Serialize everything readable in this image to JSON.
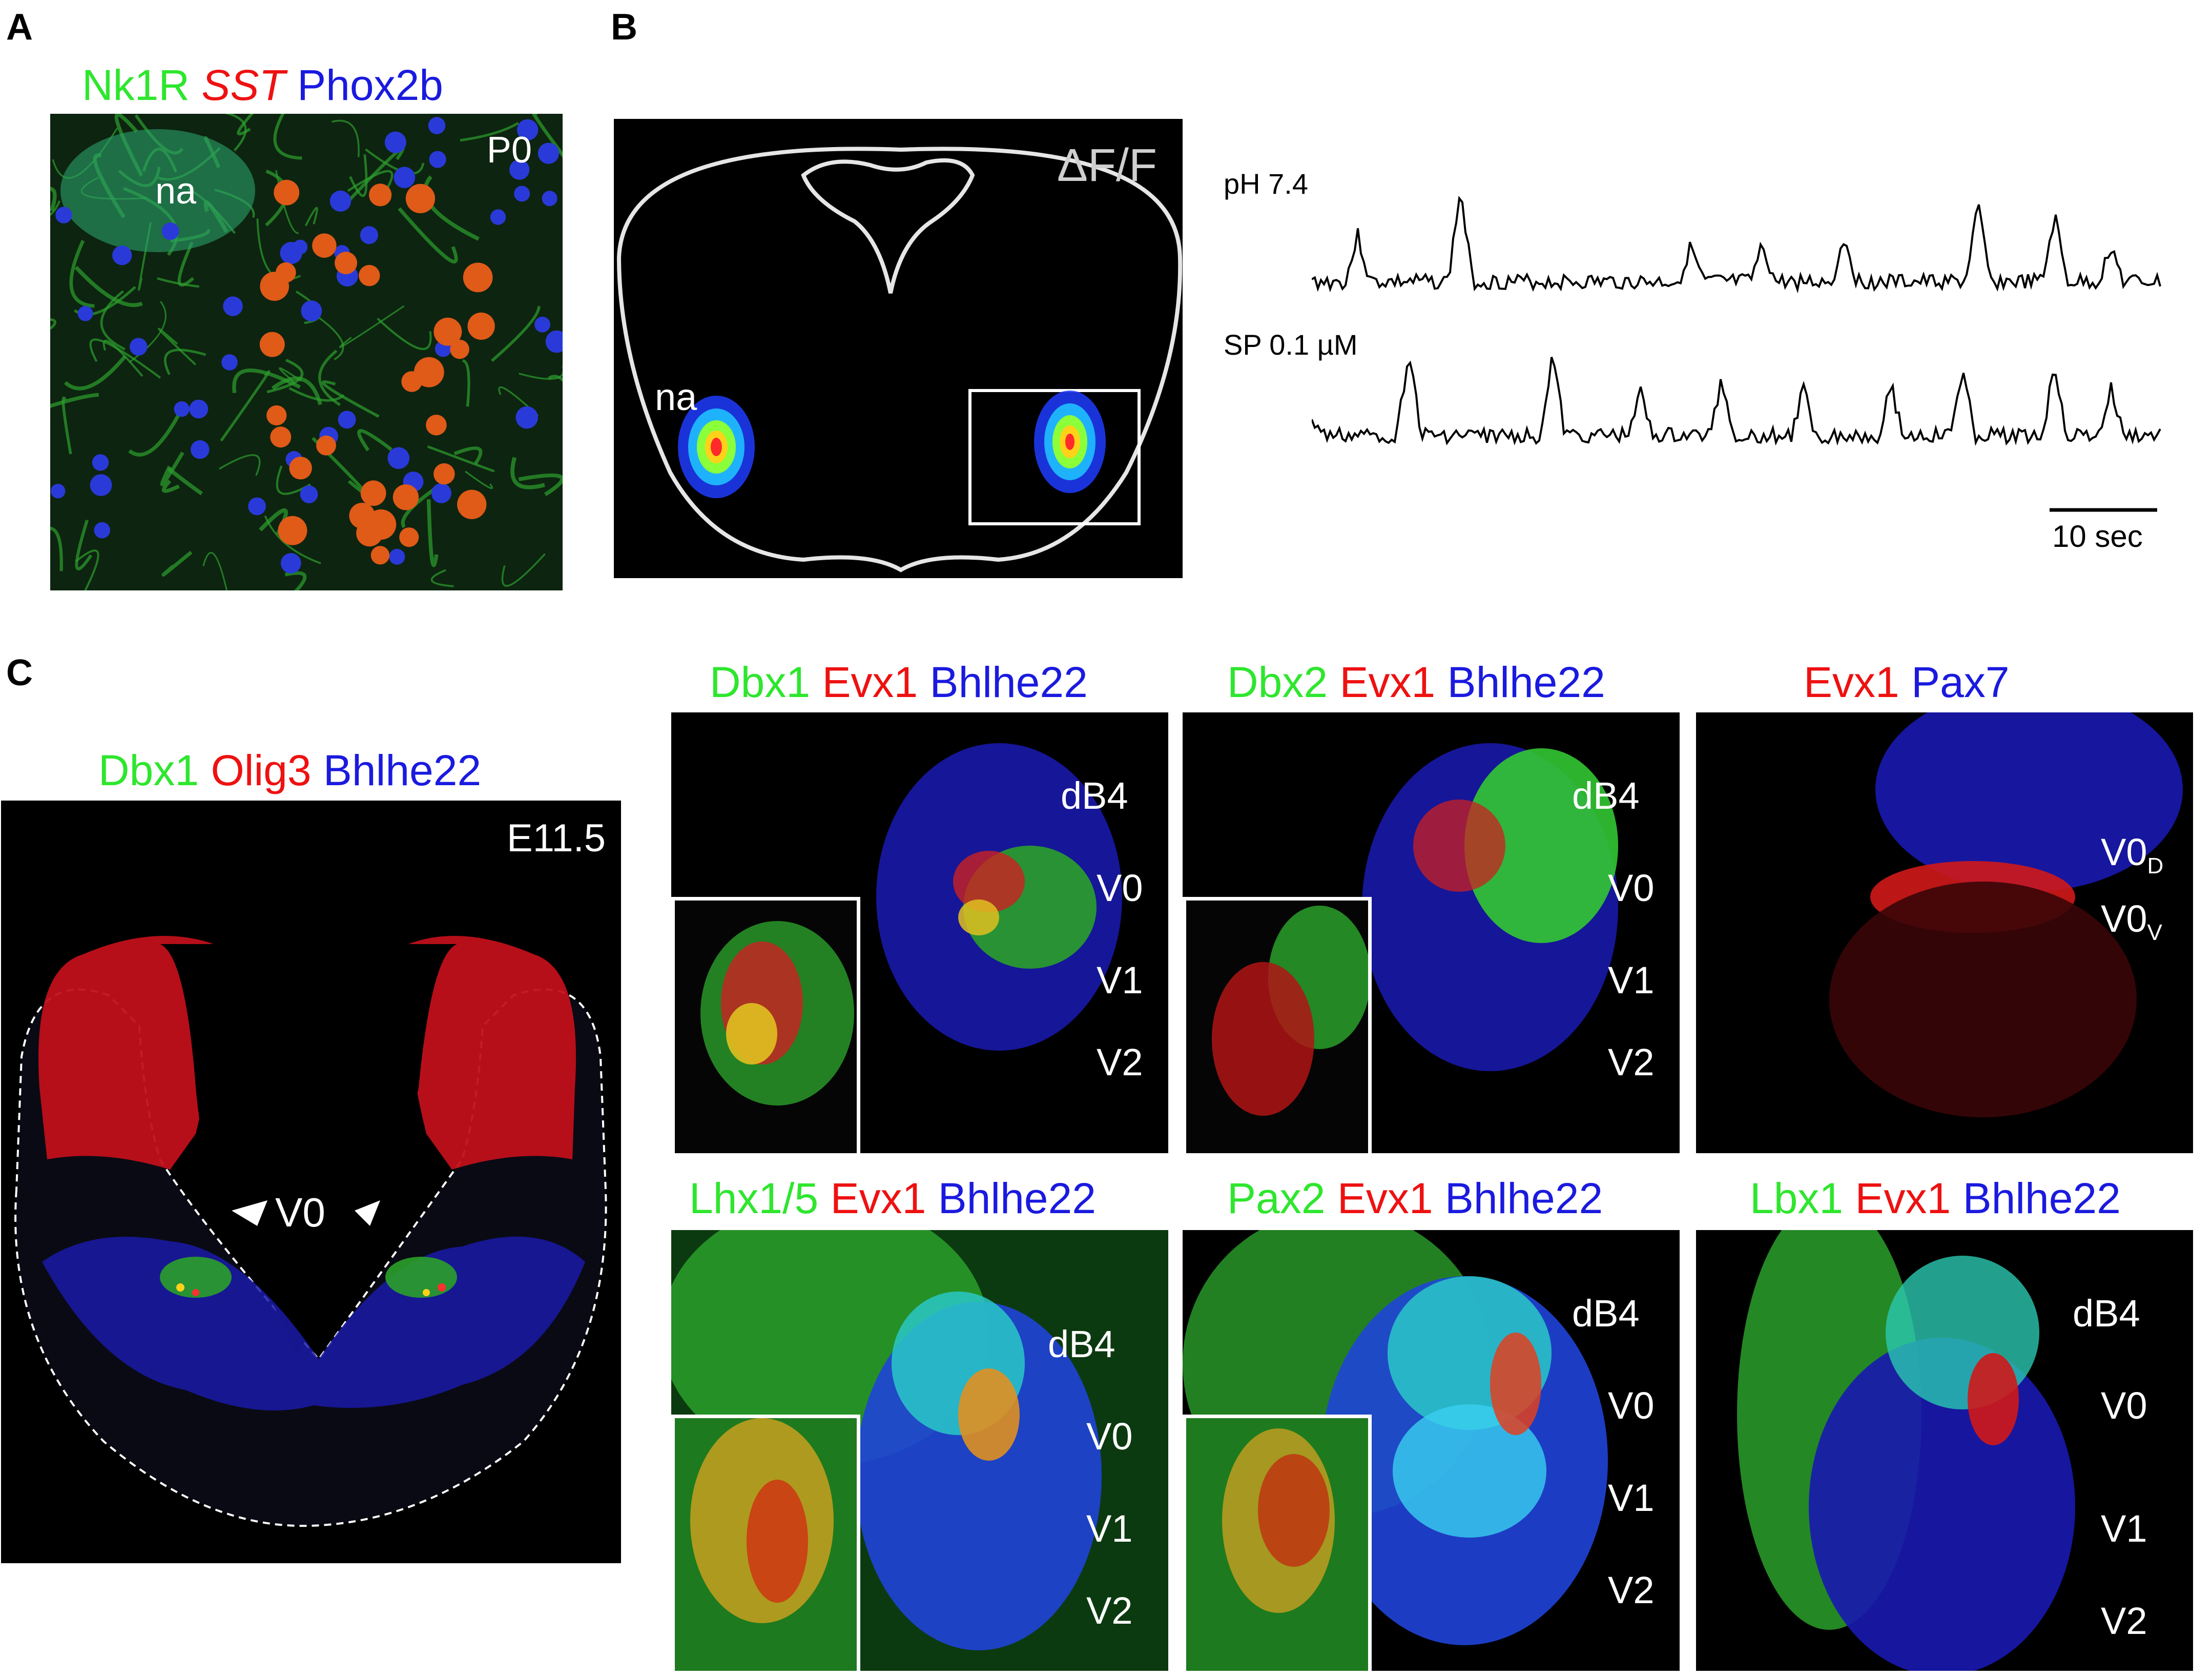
{
  "panelA": {
    "letter": "A",
    "stain": [
      {
        "text": "Nk1R",
        "color": "green"
      },
      {
        "text": "SST",
        "color": "red",
        "italic": true
      },
      {
        "text": "Phox2b",
        "color": "blue"
      }
    ],
    "age": "P0",
    "region": "na"
  },
  "panelB": {
    "letter": "B",
    "measure": "ΔF/F",
    "region": "na",
    "trace1": "pH 7.4",
    "trace2": "SP 0.1 µM",
    "scalebar": "10 sec"
  },
  "panelC": {
    "letter": "C",
    "main": {
      "stain": [
        {
          "text": "Dbx1",
          "color": "green"
        },
        {
          "text": "Olig3",
          "color": "red"
        },
        {
          "text": "Bhlhe22",
          "color": "blue"
        }
      ],
      "age": "E11.5",
      "label": "V0"
    },
    "sub": [
      {
        "stain": [
          {
            "text": "Dbx1",
            "color": "green"
          },
          {
            "text": "Evx1",
            "color": "red"
          },
          {
            "text": "Bhlhe22",
            "color": "blue"
          }
        ],
        "labels": [
          "dB4",
          "V0",
          "V1",
          "V2"
        ]
      },
      {
        "stain": [
          {
            "text": "Dbx2",
            "color": "green"
          },
          {
            "text": "Evx1",
            "color": "red"
          },
          {
            "text": "Bhlhe22",
            "color": "blue"
          }
        ],
        "labels": [
          "dB4",
          "V0",
          "V1",
          "V2"
        ]
      },
      {
        "stain": [
          {
            "text": "Evx1",
            "color": "red"
          },
          {
            "text": "Pax7",
            "color": "blue"
          }
        ],
        "labels": [
          "V0",
          "V0"
        ],
        "subscripts": [
          "D",
          "V"
        ]
      },
      {
        "stain": [
          {
            "text": "Lhx1/5",
            "color": "green"
          },
          {
            "text": "Evx1",
            "color": "red"
          },
          {
            "text": "Bhlhe22",
            "color": "blue"
          }
        ],
        "labels": [
          "dB4",
          "V0",
          "V1",
          "V2"
        ]
      },
      {
        "stain": [
          {
            "text": "Pax2",
            "color": "green"
          },
          {
            "text": "Evx1",
            "color": "red"
          },
          {
            "text": "Bhlhe22",
            "color": "blue"
          }
        ],
        "labels": [
          "dB4",
          "V0",
          "V1",
          "V2"
        ]
      },
      {
        "stain": [
          {
            "text": "Lbx1",
            "color": "green"
          },
          {
            "text": "Evx1",
            "color": "red"
          },
          {
            "text": "Bhlhe22",
            "color": "blue"
          }
        ],
        "labels": [
          "dB4",
          "V0",
          "V1",
          "V2"
        ]
      }
    ]
  },
  "colors": {
    "green": "#2ee62e",
    "red": "#ee1111",
    "blue": "#1a1adf"
  }
}
